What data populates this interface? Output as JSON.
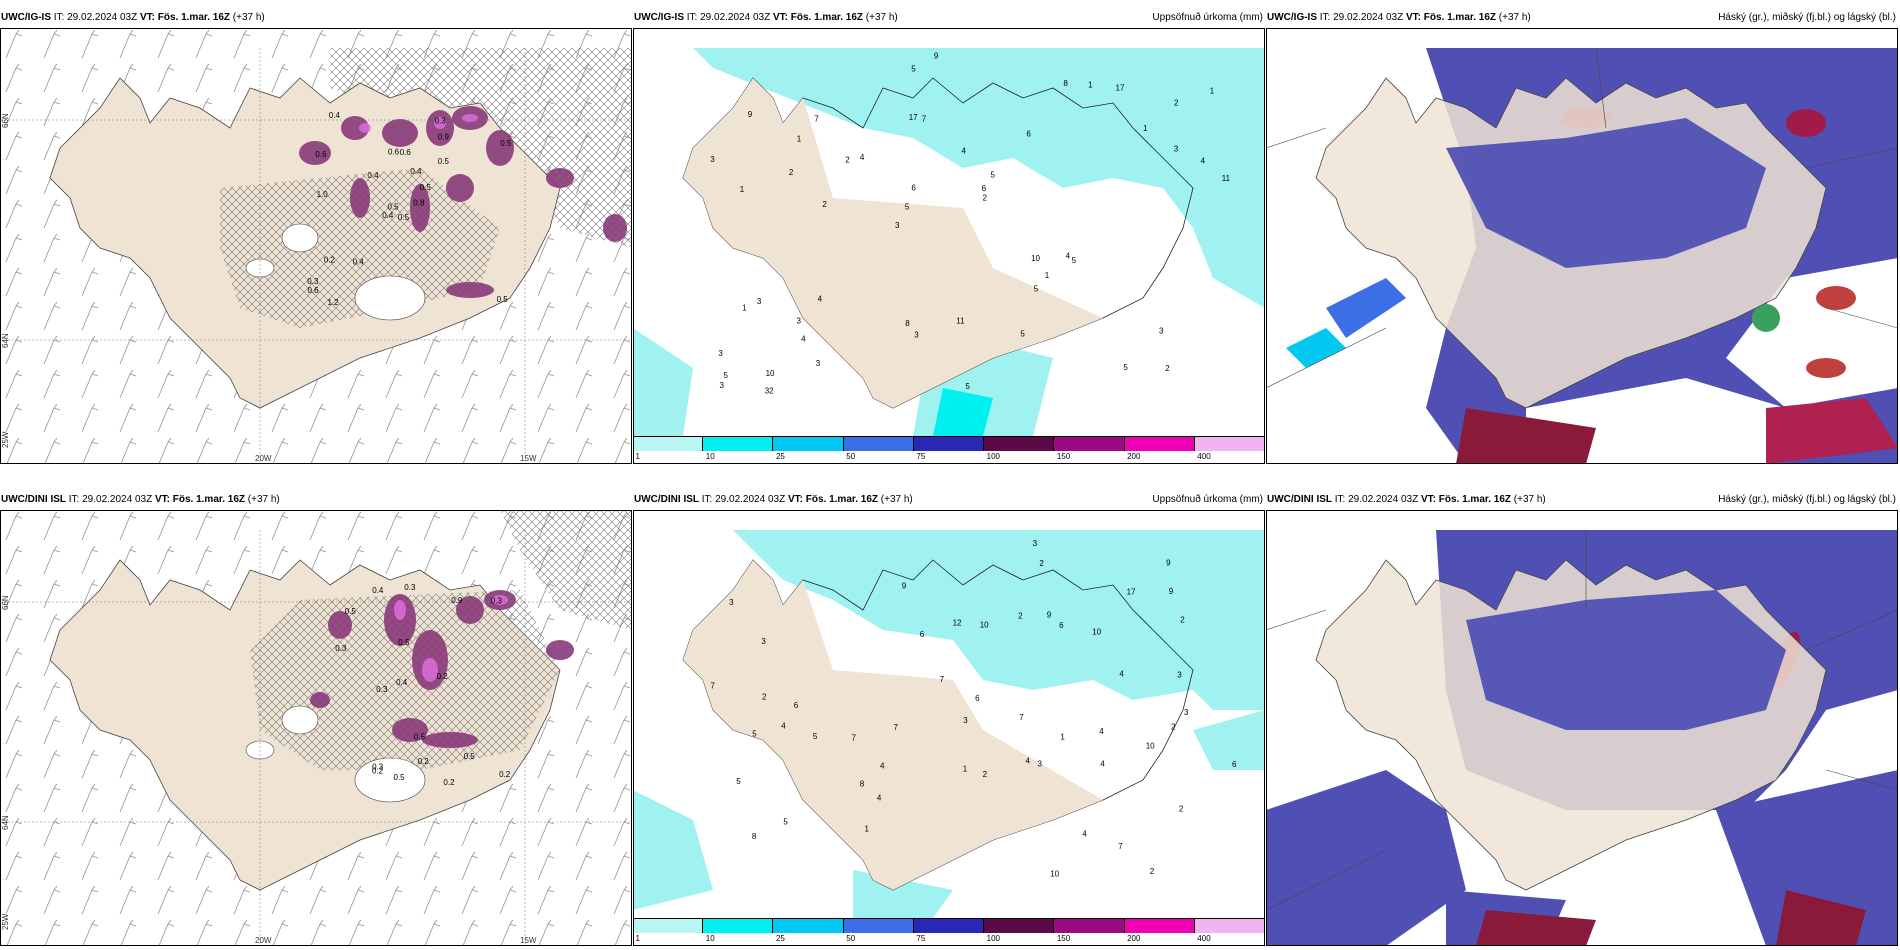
{
  "rows": [
    {
      "model": "UWC/IG-IS",
      "panels": [
        {
          "model": "UWC/IG-IS",
          "it_label": "IT:",
          "it": "29.02.2024 03Z",
          "vt_label": "VT:",
          "vt": "Fös. 1.mar. 16Z",
          "lead": "(+37 h)",
          "right": ""
        },
        {
          "model": "UWC/IG-IS",
          "it_label": "IT:",
          "it": "29.02.2024 03Z",
          "vt_label": "VT:",
          "vt": "Fös. 1.mar. 16Z",
          "lead": "(+37 h)",
          "right": "Uppsöfnuð úrkoma (mm)"
        },
        {
          "model": "UWC/IG-IS",
          "it_label": "IT:",
          "it": "29.02.2024 03Z",
          "vt_label": "VT:",
          "vt": "Fös. 1.mar. 16Z",
          "lead": "(+37 h)",
          "right": "Háský (gr.), miðský (fj.bl.) og lágský (bl.)"
        }
      ]
    },
    {
      "model": "UWC/DINI ISL",
      "panels": [
        {
          "model": "UWC/DINI ISL",
          "it_label": "IT:",
          "it": "29.02.2024 03Z",
          "vt_label": "VT:",
          "vt": "Fös. 1.mar. 16Z",
          "lead": "(+37 h)",
          "right": ""
        },
        {
          "model": "UWC/DINI ISL",
          "it_label": "IT:",
          "it": "29.02.2024 03Z",
          "vt_label": "VT:",
          "vt": "Fös. 1.mar. 16Z",
          "lead": "(+37 h)",
          "right": "Uppsöfnuð úrkoma (mm)"
        },
        {
          "model": "UWC/DINI ISL",
          "it_label": "IT:",
          "it": "29.02.2024 03Z",
          "vt_label": "VT:",
          "vt": "Fös. 1.mar. 16Z",
          "lead": "(+37 h)",
          "right": "Háský (gr.), miðský (fj.bl.) og lágský (bl.)"
        }
      ]
    }
  ],
  "axis_labels": {
    "lat66": "66N",
    "lat64": "64N",
    "lon20": "20W",
    "lon15": "15W",
    "lon25": "25W"
  },
  "colorbar": {
    "labels": [
      "1",
      "10",
      "25",
      "50",
      "75",
      "100",
      "150",
      "200",
      "400"
    ],
    "colors": [
      "#b8f5f3",
      "#00f0f0",
      "#00c8f0",
      "#3c6ee6",
      "#2828b4",
      "#5a0a46",
      "#9c0a82",
      "#f000b4",
      "#f0b4f0"
    ]
  },
  "precip_numbers_top": [
    "2",
    "1",
    "2",
    "3",
    "6",
    "10",
    "17",
    "4",
    "3",
    "4",
    "3",
    "4",
    "7",
    "5",
    "5",
    "9",
    "5",
    "11",
    "10",
    "3",
    "5",
    "8",
    "6",
    "7",
    "8",
    "4",
    "5",
    "3",
    "4",
    "5",
    "2",
    "2",
    "5",
    "3",
    "4",
    "6",
    "5",
    "3",
    "2",
    "1",
    "1",
    "1",
    "1",
    "5",
    "3",
    "32",
    "3",
    "11",
    "17",
    "9",
    "2",
    "3",
    "1",
    "1"
  ],
  "precip_numbers_bottom": [
    "2",
    "4",
    "4",
    "3",
    "2",
    "3",
    "5",
    "7",
    "10",
    "12",
    "6",
    "7",
    "4",
    "9",
    "7",
    "5",
    "4",
    "6",
    "7",
    "8",
    "9",
    "10",
    "4",
    "6",
    "3",
    "2",
    "5",
    "3",
    "7",
    "9",
    "3",
    "5",
    "8",
    "9",
    "6",
    "10",
    "2",
    "4",
    "17",
    "10",
    "4",
    "2",
    "1",
    "3",
    "7",
    "6",
    "2",
    "2",
    "2",
    "1",
    "1",
    "3",
    "4"
  ],
  "cloud_values_top": [
    "0.5",
    "0.6",
    "0.5",
    "0.3",
    "0.5",
    "0.4",
    "0.3",
    "0.6",
    "0.9",
    "0.8",
    "0.4",
    "0.5",
    "1.0",
    "0.5",
    "0.4",
    "0.5",
    "1.2",
    "0.6",
    "0.4",
    "0.2",
    "0.4",
    "0.6"
  ],
  "cloud_values_bottom": [
    "0.5",
    "0.2",
    "0.3",
    "0.5",
    "0.4",
    "0.5",
    "0.3",
    "0.2",
    "0.3",
    "0.5",
    "0.3",
    "0.2",
    "0.4",
    "0.5",
    "0.9",
    "0.2",
    "0.3",
    "0.2"
  ],
  "colors": {
    "land": "#efe3d3",
    "hatch": "#888888",
    "purple": "#8a3a7a",
    "cyan": "#9ff2f0",
    "deepblue": "#5050b4"
  }
}
